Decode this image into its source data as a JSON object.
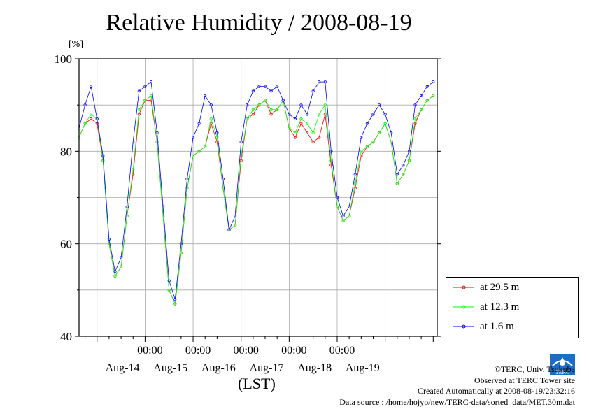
{
  "chart_data": {
    "type": "line",
    "title": "Relative Humidity / 2008-08-19",
    "ylabel": "[%]",
    "xlabel": "(LST)",
    "ylim": [
      40,
      100
    ],
    "yticks": [
      40,
      60,
      80,
      100
    ],
    "xlim_hours": [
      -9,
      170
    ],
    "x_minor_labels": [
      "00:00",
      "00:00",
      "00:00",
      "00:00",
      "00:00"
    ],
    "x_date_labels": [
      "Aug-14",
      "Aug-15",
      "Aug-16",
      "Aug-17",
      "Aug-18",
      "Aug-19"
    ],
    "grid": true,
    "legend_position": "right-bottom",
    "series": [
      {
        "name": "at 29.5 m",
        "color": "#ff0000",
        "x": [
          -9,
          -6,
          -3,
          0,
          3,
          6,
          9,
          12,
          15,
          18,
          21,
          24,
          27,
          30,
          33,
          36,
          39,
          42,
          45,
          48,
          51,
          54,
          57,
          60,
          63,
          66,
          69,
          72,
          75,
          78,
          81,
          84,
          87,
          90,
          93,
          96,
          99,
          102,
          105,
          108,
          111,
          114,
          117,
          120,
          123,
          126,
          129,
          132,
          135,
          138,
          141,
          144,
          147,
          150,
          153,
          156,
          159,
          162,
          165,
          168
        ],
        "values": [
          83,
          86,
          87,
          86,
          78,
          60,
          53,
          55,
          66,
          75,
          88,
          91,
          91,
          82,
          66,
          50,
          47,
          58,
          72,
          79,
          80,
          81,
          86,
          82,
          72,
          63,
          64,
          78,
          87,
          88,
          90,
          91,
          88,
          89,
          91,
          85,
          83,
          86,
          84,
          82,
          83,
          88,
          77,
          68,
          65,
          66,
          72,
          79,
          81,
          82,
          84,
          86,
          82,
          73,
          75,
          78,
          86,
          89,
          91,
          92
        ]
      },
      {
        "name": "at 12.3 m",
        "color": "#00ff00",
        "x": [
          -9,
          -6,
          -3,
          0,
          3,
          6,
          9,
          12,
          15,
          18,
          21,
          24,
          27,
          30,
          33,
          36,
          39,
          42,
          45,
          48,
          51,
          54,
          57,
          60,
          63,
          66,
          69,
          72,
          75,
          78,
          81,
          84,
          87,
          90,
          93,
          96,
          99,
          102,
          105,
          108,
          111,
          114,
          117,
          120,
          123,
          126,
          129,
          132,
          135,
          138,
          141,
          144,
          147,
          150,
          153,
          156,
          159,
          162,
          165,
          168
        ],
        "values": [
          83,
          86,
          88,
          87,
          78,
          60,
          53,
          55,
          66,
          76,
          89,
          91,
          92,
          82,
          66,
          50,
          47,
          58,
          72,
          79,
          80,
          81,
          87,
          83,
          72,
          63,
          64,
          79,
          87,
          89,
          90,
          91,
          89,
          89,
          91,
          85,
          84,
          87,
          86,
          84,
          88,
          90,
          78,
          68,
          65,
          66,
          73,
          80,
          81,
          82,
          84,
          86,
          82,
          73,
          75,
          78,
          87,
          89,
          91,
          92
        ]
      },
      {
        "name": "at 1.6 m",
        "color": "#0000ff",
        "x": [
          -9,
          -6,
          -3,
          0,
          3,
          6,
          9,
          12,
          15,
          18,
          21,
          24,
          27,
          30,
          33,
          36,
          39,
          42,
          45,
          48,
          51,
          54,
          57,
          60,
          63,
          66,
          69,
          72,
          75,
          78,
          81,
          84,
          87,
          90,
          93,
          96,
          99,
          102,
          105,
          108,
          111,
          114,
          117,
          120,
          123,
          126,
          129,
          132,
          135,
          138,
          141,
          144,
          147,
          150,
          153,
          156,
          159,
          162,
          165,
          168
        ],
        "values": [
          85,
          90,
          94,
          87,
          79,
          61,
          54,
          57,
          68,
          82,
          93,
          94,
          95,
          84,
          68,
          52,
          48,
          60,
          74,
          83,
          86,
          92,
          90,
          84,
          74,
          63,
          66,
          82,
          90,
          93,
          94,
          94,
          93,
          94,
          91,
          88,
          87,
          90,
          88,
          93,
          95,
          95,
          80,
          70,
          66,
          68,
          75,
          83,
          86,
          88,
          90,
          88,
          84,
          75,
          77,
          80,
          90,
          92,
          94,
          95
        ]
      }
    ]
  },
  "credits": {
    "copyright": "©TERC, Univ. Tsukuba",
    "observed": "Observed at TERC Tower site",
    "created": "Created Automatically at 2008-08-19/23:32:16",
    "source": "Data source : /home/hojyo/new/TERC-data/sorted_data/MET.30m.dat"
  },
  "logo": {
    "text": "TERC",
    "color": "#1a6fc4"
  }
}
